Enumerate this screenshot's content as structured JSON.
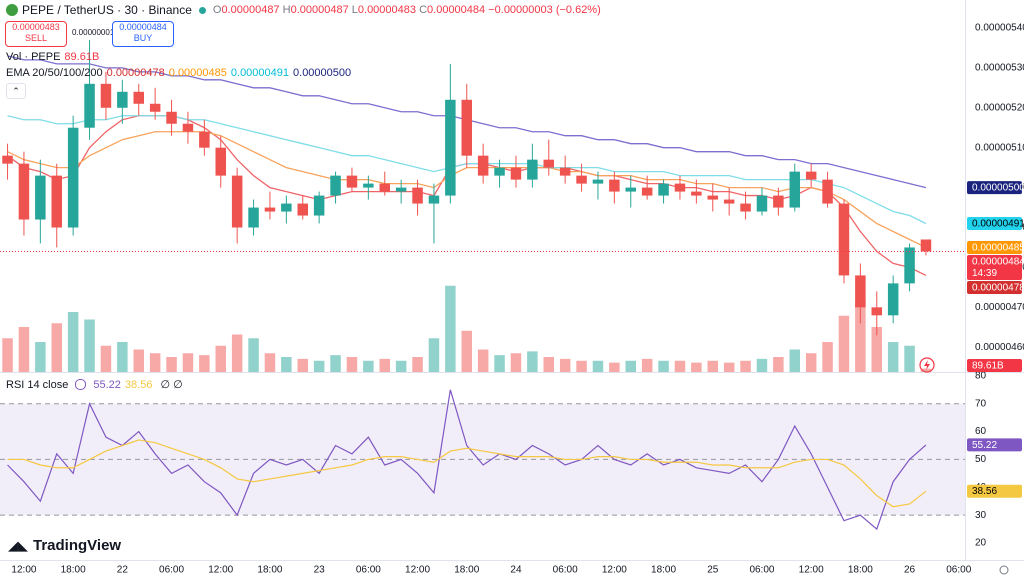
{
  "header": {
    "symbol": "PEPE / TetherUS · 30 · Binance",
    "ohlc": [
      {
        "label": "O",
        "value": "0.00000487"
      },
      {
        "label": "H",
        "value": "0.00000487"
      },
      {
        "label": "L",
        "value": "0.00000483"
      },
      {
        "label": "C",
        "value": "0.00000484"
      }
    ],
    "change": "−0.00000003 (−0.62%)",
    "sell": {
      "price": "0.00000483",
      "label": "SELL"
    },
    "spread": "0.00000001",
    "buy": {
      "price": "0.00000484",
      "label": "BUY"
    }
  },
  "brand": "TradingView",
  "chart_data": {
    "type": "candlestick",
    "xlim": [
      -0.46,
      58.38
    ],
    "xticks": [
      {
        "value": 1,
        "label": "12:00"
      },
      {
        "value": 4,
        "label": "18:00"
      },
      {
        "value": 7,
        "label": "22"
      },
      {
        "value": 10,
        "label": "06:00"
      },
      {
        "value": 13,
        "label": "12:00"
      },
      {
        "value": 16,
        "label": "18:00"
      },
      {
        "value": 19,
        "label": "23"
      },
      {
        "value": 22,
        "label": "06:00"
      },
      {
        "value": 25,
        "label": "12:00"
      },
      {
        "value": 28,
        "label": "18:00"
      },
      {
        "value": 31,
        "label": "24"
      },
      {
        "value": 34,
        "label": "06:00"
      },
      {
        "value": 37,
        "label": "12:00"
      },
      {
        "value": 40,
        "label": "18:00"
      },
      {
        "value": 43,
        "label": "25"
      },
      {
        "value": 46,
        "label": "06:00"
      },
      {
        "value": 49,
        "label": "12:00"
      },
      {
        "value": 52,
        "label": "18:00"
      },
      {
        "value": 55,
        "label": "26"
      },
      {
        "value": 58,
        "label": "06:00"
      }
    ],
    "ylim": [
      4.538e-06,
      5.47e-06
    ],
    "yticks": [
      {
        "value": 4.6e-06,
        "label": "0.00000460"
      },
      {
        "value": 4.7e-06,
        "label": "0.00000470"
      },
      {
        "value": 4.8e-06,
        "label": "0.00000480"
      },
      {
        "value": 4.9e-06,
        "label": "0.00000490"
      },
      {
        "value": 5e-06,
        "label": "0.00000500"
      },
      {
        "value": 5.1e-06,
        "label": "0.00000510"
      },
      {
        "value": 5.2e-06,
        "label": "0.00000520"
      },
      {
        "value": 5.3e-06,
        "label": "0.00000530"
      },
      {
        "value": 5.4e-06,
        "label": "0.00000540"
      }
    ],
    "up_color": "#26a69a",
    "down_color": "#ef5350",
    "last_price_color": "#f23645",
    "candles": {
      "open": [
        5.08e-06,
        5.06e-06,
        4.92e-06,
        5.03e-06,
        4.9e-06,
        5.15e-06,
        5.26e-06,
        5.2e-06,
        5.24e-06,
        5.21e-06,
        5.19e-06,
        5.16e-06,
        5.14e-06,
        5.1e-06,
        5.03e-06,
        4.9e-06,
        4.95e-06,
        4.94e-06,
        4.96e-06,
        4.93e-06,
        4.98e-06,
        5.03e-06,
        5e-06,
        5.01e-06,
        4.99e-06,
        5e-06,
        4.96e-06,
        4.98e-06,
        5.22e-06,
        5.08e-06,
        5.03e-06,
        5.05e-06,
        5.02e-06,
        5.07e-06,
        5.05e-06,
        5.03e-06,
        5.01e-06,
        5.02e-06,
        4.99e-06,
        5e-06,
        4.98e-06,
        5.01e-06,
        4.99e-06,
        4.98e-06,
        4.97e-06,
        4.96e-06,
        4.94e-06,
        4.98e-06,
        4.95e-06,
        5.04e-06,
        5.02e-06,
        4.96e-06,
        4.78e-06,
        4.7e-06,
        4.68e-06,
        4.76e-06,
        4.87e-06
      ],
      "high": [
        5.11e-06,
        5.09e-06,
        5.07e-06,
        5.06e-06,
        5.18e-06,
        5.37e-06,
        5.29e-06,
        5.27e-06,
        5.26e-06,
        5.25e-06,
        5.22e-06,
        5.19e-06,
        5.17e-06,
        5.13e-06,
        5.05e-06,
        4.97e-06,
        4.99e-06,
        4.98e-06,
        4.98e-06,
        4.99e-06,
        5.04e-06,
        5.05e-06,
        5.03e-06,
        5.04e-06,
        5.02e-06,
        5.02e-06,
        5.01e-06,
        5.31e-06,
        5.26e-06,
        5.11e-06,
        5.07e-06,
        5.08e-06,
        5.11e-06,
        5.12e-06,
        5.08e-06,
        5.06e-06,
        5.04e-06,
        5.04e-06,
        5.03e-06,
        5.03e-06,
        5.02e-06,
        5.03e-06,
        5.02e-06,
        5.01e-06,
        5e-06,
        4.99e-06,
        5e-06,
        5e-06,
        5.06e-06,
        5.06e-06,
        5.04e-06,
        4.97e-06,
        4.81e-06,
        4.74e-06,
        4.78e-06,
        4.86e-06,
        4.87e-06
      ],
      "low": [
        5.02e-06,
        4.88e-06,
        4.86e-06,
        4.85e-06,
        4.88e-06,
        5.12e-06,
        5.17e-06,
        5.16e-06,
        5.18e-06,
        5.17e-06,
        5.13e-06,
        5.11e-06,
        5.08e-06,
        5e-06,
        4.86e-06,
        4.88e-06,
        4.92e-06,
        4.91e-06,
        4.92e-06,
        4.91e-06,
        4.96e-06,
        4.99e-06,
        4.97e-06,
        4.98e-06,
        4.96e-06,
        4.93e-06,
        4.86e-06,
        4.96e-06,
        5.05e-06,
        5.01e-06,
        5e-06,
        5e-06,
        5e-06,
        5.03e-06,
        5.01e-06,
        4.99e-06,
        4.97e-06,
        4.96e-06,
        4.95e-06,
        4.97e-06,
        4.96e-06,
        4.97e-06,
        4.96e-06,
        4.94e-06,
        4.93e-06,
        4.92e-06,
        4.93e-06,
        4.93e-06,
        4.94e-06,
        5e-06,
        4.95e-06,
        4.76e-06,
        4.66e-06,
        4.63e-06,
        4.66e-06,
        4.74e-06,
        4.83e-06
      ],
      "close": [
        5.06e-06,
        4.92e-06,
        5.03e-06,
        4.9e-06,
        5.15e-06,
        5.26e-06,
        5.2e-06,
        5.24e-06,
        5.21e-06,
        5.19e-06,
        5.16e-06,
        5.14e-06,
        5.1e-06,
        5.03e-06,
        4.9e-06,
        4.95e-06,
        4.94e-06,
        4.96e-06,
        4.93e-06,
        4.98e-06,
        5.03e-06,
        5e-06,
        5.01e-06,
        4.99e-06,
        5e-06,
        4.96e-06,
        4.98e-06,
        5.22e-06,
        5.08e-06,
        5.03e-06,
        5.05e-06,
        5.02e-06,
        5.07e-06,
        5.05e-06,
        5.03e-06,
        5.01e-06,
        5.02e-06,
        4.99e-06,
        5e-06,
        4.98e-06,
        5.01e-06,
        4.99e-06,
        4.98e-06,
        4.97e-06,
        4.96e-06,
        4.94e-06,
        4.98e-06,
        4.95e-06,
        5.04e-06,
        5.02e-06,
        4.96e-06,
        4.78e-06,
        4.7e-06,
        4.68e-06,
        4.76e-06,
        4.85e-06,
        4.84e-06
      ],
      "close_labels": {
        "56": "0.00000484"
      }
    },
    "countdown": "14:39",
    "volume": {
      "name": "Vol · PEPE",
      "lim": [
        0,
        2400
      ],
      "values": [
        900,
        1200,
        800,
        1300,
        1600,
        1400,
        700,
        800,
        600,
        500,
        400,
        500,
        450,
        700,
        1000,
        900,
        500,
        400,
        350,
        300,
        450,
        400,
        300,
        350,
        300,
        400,
        900,
        2300,
        1100,
        600,
        450,
        500,
        550,
        400,
        350,
        300,
        300,
        250,
        300,
        350,
        300,
        300,
        250,
        300,
        250,
        300,
        350,
        400,
        600,
        500,
        800,
        1500,
        1900,
        1200,
        800,
        700,
        89.61
      ],
      "value_labels": {
        "56": "89.61B"
      }
    },
    "ema": {
      "name": "EMA 20/50/100/200",
      "series": [
        {
          "color": "#f06467",
          "values": [
            5.08e-06,
            5.05e-06,
            5.04e-06,
            5.02e-06,
            5.03e-06,
            5.1e-06,
            5.14e-06,
            5.17e-06,
            5.18e-06,
            5.18e-06,
            5.18e-06,
            5.17e-06,
            5.15e-06,
            5.12e-06,
            5.07e-06,
            5.03e-06,
            5e-06,
            4.99e-06,
            4.98e-06,
            4.97e-06,
            4.98e-06,
            4.99e-06,
            4.99e-06,
            4.99e-06,
            4.99e-06,
            4.99e-06,
            4.98e-06,
            5.05e-06,
            5.06e-06,
            5.06e-06,
            5.05e-06,
            5.04e-06,
            5.05e-06,
            5.05e-06,
            5.05e-06,
            5.04e-06,
            5.03e-06,
            5.03e-06,
            5.02e-06,
            5.01e-06,
            5.01e-06,
            5e-06,
            5e-06,
            4.99e-06,
            4.99e-06,
            4.98e-06,
            4.98e-06,
            4.97e-06,
            4.98e-06,
            5e-06,
            4.99e-06,
            4.95e-06,
            4.89e-06,
            4.84e-06,
            4.81e-06,
            4.8e-06,
            4.78e-06
          ],
          "value_labels": {
            "56": "0.00000478"
          },
          "badge_color": "#d32f2f"
        },
        {
          "color": "#f7a35c",
          "values": [
            5.09e-06,
            5.07e-06,
            5.06e-06,
            5.05e-06,
            5.05e-06,
            5.08e-06,
            5.1e-06,
            5.12e-06,
            5.13e-06,
            5.14e-06,
            5.14e-06,
            5.14e-06,
            5.14e-06,
            5.13e-06,
            5.11e-06,
            5.09e-06,
            5.07e-06,
            5.05e-06,
            5.04e-06,
            5.03e-06,
            5.02e-06,
            5.02e-06,
            5.02e-06,
            5.01e-06,
            5.01e-06,
            5.01e-06,
            5e-06,
            5.03e-06,
            5.05e-06,
            5.05e-06,
            5.05e-06,
            5.05e-06,
            5.05e-06,
            5.05e-06,
            5.04e-06,
            5.04e-06,
            5.03e-06,
            5.03e-06,
            5.03e-06,
            5.02e-06,
            5.02e-06,
            5.02e-06,
            5.01e-06,
            5.01e-06,
            5e-06,
            5e-06,
            5e-06,
            4.99e-06,
            5e-06,
            5e-06,
            4.99e-06,
            4.97e-06,
            4.94e-06,
            4.91e-06,
            4.89e-06,
            4.87e-06,
            4.85e-06
          ],
          "value_labels": {
            "56": "0.00000485"
          },
          "badge_color": "#ff9800"
        },
        {
          "color": "#7fdde9",
          "values": [
            5.18e-06,
            5.17e-06,
            5.17e-06,
            5.16e-06,
            5.16e-06,
            5.17e-06,
            5.17e-06,
            5.18e-06,
            5.18e-06,
            5.18e-06,
            5.18e-06,
            5.17e-06,
            5.17e-06,
            5.16e-06,
            5.15e-06,
            5.14e-06,
            5.13e-06,
            5.12e-06,
            5.11e-06,
            5.1e-06,
            5.09e-06,
            5.08e-06,
            5.08e-06,
            5.07e-06,
            5.06e-06,
            5.05e-06,
            5.04e-06,
            5.05e-06,
            5.06e-06,
            5.06e-06,
            5.06e-06,
            5.06e-06,
            5.06e-06,
            5.05e-06,
            5.05e-06,
            5.05e-06,
            5.05e-06,
            5.04e-06,
            5.04e-06,
            5.04e-06,
            5.04e-06,
            5.03e-06,
            5.03e-06,
            5.03e-06,
            5.03e-06,
            5.02e-06,
            5.02e-06,
            5.02e-06,
            5.02e-06,
            5.02e-06,
            5.01e-06,
            5e-06,
            4.98e-06,
            4.96e-06,
            4.94e-06,
            4.93e-06,
            4.91e-06
          ],
          "value_labels": {
            "56": "0.00000491"
          },
          "badge_color": "#22d3ee"
        },
        {
          "color": "#7b6fd0",
          "values": [
            5.33e-06,
            5.32e-06,
            5.32e-06,
            5.31e-06,
            5.31e-06,
            5.31e-06,
            5.3e-06,
            5.3e-06,
            5.29e-06,
            5.29e-06,
            5.28e-06,
            5.28e-06,
            5.27e-06,
            5.27e-06,
            5.26e-06,
            5.25e-06,
            5.25e-06,
            5.24e-06,
            5.23e-06,
            5.23e-06,
            5.22e-06,
            5.21e-06,
            5.21e-06,
            5.2e-06,
            5.19e-06,
            5.19e-06,
            5.18e-06,
            5.18e-06,
            5.17e-06,
            5.16e-06,
            5.15e-06,
            5.15e-06,
            5.14e-06,
            5.14e-06,
            5.13e-06,
            5.13e-06,
            5.12e-06,
            5.12e-06,
            5.11e-06,
            5.11e-06,
            5.1e-06,
            5.1e-06,
            5.09e-06,
            5.09e-06,
            5.09e-06,
            5.08e-06,
            5.08e-06,
            5.07e-06,
            5.07e-06,
            5.06e-06,
            5.06e-06,
            5.05e-06,
            5.04e-06,
            5.03e-06,
            5.02e-06,
            5.01e-06,
            5e-06
          ],
          "value_labels": {
            "56": "0.00000500"
          },
          "badge_color": "#1a237e"
        }
      ]
    },
    "rsi": {
      "type": "line",
      "name": "RSI 14 close",
      "extra": "∅ ∅",
      "ylim": [
        14.6,
        81.4
      ],
      "yticks": [
        20,
        30,
        40,
        50,
        60,
        70,
        80
      ],
      "levels": [
        70,
        50,
        30
      ],
      "series": [
        {
          "color": "#7e57c2",
          "values": [
            48,
            42,
            35,
            52,
            45,
            70,
            58,
            55,
            60,
            52,
            45,
            48,
            42,
            38,
            30,
            45,
            50,
            48,
            50,
            45,
            55,
            52,
            58,
            48,
            50,
            45,
            38,
            75,
            55,
            48,
            52,
            50,
            55,
            52,
            48,
            50,
            55,
            50,
            48,
            52,
            48,
            50,
            47,
            46,
            45,
            48,
            42,
            50,
            62,
            52,
            40,
            28,
            30,
            25,
            42,
            50,
            55.22
          ],
          "value_labels": {
            "56": "55.22"
          }
        },
        {
          "color": "#f5c842",
          "values": [
            50,
            50,
            48,
            47,
            47,
            50,
            53,
            55,
            57,
            56,
            54,
            52,
            50,
            47,
            43,
            42,
            43,
            44,
            45,
            46,
            47,
            48,
            50,
            51,
            51,
            50,
            49,
            53,
            54,
            53,
            52,
            51,
            51,
            51,
            50,
            50,
            51,
            51,
            50,
            50,
            49,
            49,
            49,
            48,
            48,
            47,
            47,
            47,
            49,
            50,
            50,
            48,
            43,
            37,
            33,
            34,
            38.56
          ],
          "value_labels": {
            "56": "38.56"
          }
        }
      ]
    }
  }
}
